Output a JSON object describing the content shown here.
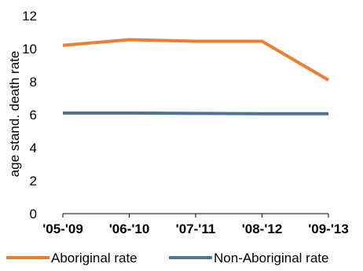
{
  "chart_data": {
    "type": "line",
    "title": "",
    "xlabel": "",
    "ylabel": "age stand. death rate",
    "categories": [
      "'05-'09",
      "'06-'10",
      "'07-'11",
      "'08-'12",
      "'09-'13"
    ],
    "ylim": [
      0,
      12
    ],
    "yticks": [
      0,
      2,
      4,
      6,
      8,
      10,
      12
    ],
    "grid": false,
    "legend_position": "bottom",
    "series": [
      {
        "name": "Aboriginal rate",
        "color": "#ED7D31",
        "values": [
          10.2,
          10.55,
          10.45,
          10.45,
          8.1
        ]
      },
      {
        "name": "Non-Aboriginal rate",
        "color": "#4E7394",
        "values": [
          6.1,
          6.1,
          6.08,
          6.06,
          6.06
        ]
      }
    ]
  }
}
